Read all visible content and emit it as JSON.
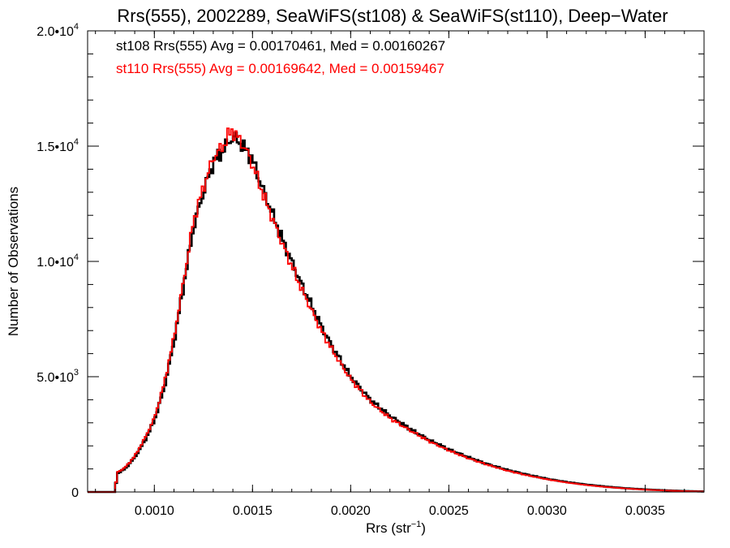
{
  "chart_data": {
    "type": "line",
    "title": "Rrs(555), 2002289, SeaWiFS(st108) & SeaWiFS(st110), Deep−Water",
    "xlabel_base": "Rrs (str",
    "xlabel_sup": "−1",
    "xlabel_end": ")",
    "ylabel": "Number of Observations",
    "xlim": [
      0.00066,
      0.0038
    ],
    "ylim": [
      0,
      20000
    ],
    "x_ticks": [
      {
        "value": 0.001,
        "label": "0.0010"
      },
      {
        "value": 0.0015,
        "label": "0.0015"
      },
      {
        "value": 0.002,
        "label": "0.0020"
      },
      {
        "value": 0.0025,
        "label": "0.0025"
      },
      {
        "value": 0.003,
        "label": "0.0030"
      },
      {
        "value": 0.0035,
        "label": "0.0035"
      }
    ],
    "y_ticks": [
      {
        "value": 0,
        "base": "0",
        "exp": ""
      },
      {
        "value": 5000,
        "base": "5.0•10",
        "exp": "3"
      },
      {
        "value": 10000,
        "base": "1.0•10",
        "exp": "4"
      },
      {
        "value": 15000,
        "base": "1.5•10",
        "exp": "4"
      },
      {
        "value": 20000,
        "base": "2.0•10",
        "exp": "4"
      }
    ],
    "annotations": [
      {
        "text": "st108 Rrs(555) Avg = 0.00170461, Med = 0.00160267",
        "color": "#000000"
      },
      {
        "text": "st110 Rrs(555) Avg = 0.00169642, Med = 0.00159467",
        "color": "#ff0000"
      }
    ],
    "series": [
      {
        "color": "#000000",
        "x": [
          0.00066,
          0.00075,
          0.0008,
          0.00081,
          0.00085,
          0.0009,
          0.00095,
          0.001,
          0.00105,
          0.0011,
          0.00115,
          0.0012,
          0.00125,
          0.0013,
          0.00135,
          0.00138,
          0.0014,
          0.00142,
          0.00145,
          0.00148,
          0.0015,
          0.00155,
          0.0016,
          0.00165,
          0.0017,
          0.00175,
          0.0018,
          0.00185,
          0.0019,
          0.00195,
          0.002,
          0.00205,
          0.0021,
          0.0022,
          0.0023,
          0.0024,
          0.0025,
          0.0026,
          0.0027,
          0.0028,
          0.0029,
          0.003,
          0.0031,
          0.0032,
          0.0033,
          0.0034,
          0.0035,
          0.0036,
          0.0037,
          0.0038
        ],
        "y": [
          0,
          0,
          0,
          800,
          1000,
          1500,
          2200,
          3100,
          4500,
          6500,
          9000,
          11500,
          13000,
          14300,
          14800,
          15200,
          15400,
          15300,
          15000,
          14700,
          14400,
          13200,
          12100,
          11000,
          10000,
          9000,
          8100,
          7200,
          6400,
          5700,
          5000,
          4500,
          4000,
          3300,
          2750,
          2250,
          1850,
          1500,
          1200,
          950,
          750,
          570,
          430,
          320,
          230,
          160,
          110,
          70,
          40,
          20
        ]
      },
      {
        "color": "#ff0000",
        "x": [
          0.00066,
          0.00075,
          0.0008,
          0.00081,
          0.00085,
          0.0009,
          0.00095,
          0.001,
          0.00105,
          0.0011,
          0.00115,
          0.0012,
          0.00125,
          0.0013,
          0.00135,
          0.00138,
          0.0014,
          0.00142,
          0.00145,
          0.00148,
          0.0015,
          0.00155,
          0.0016,
          0.00165,
          0.0017,
          0.00175,
          0.0018,
          0.00185,
          0.0019,
          0.00195,
          0.002,
          0.00205,
          0.0021,
          0.0022,
          0.0023,
          0.0024,
          0.0025,
          0.0026,
          0.0027,
          0.0028,
          0.0029,
          0.003,
          0.0031,
          0.0032,
          0.0033,
          0.0034,
          0.0035,
          0.0036,
          0.0037,
          0.0038
        ],
        "y": [
          0,
          0,
          0,
          850,
          1050,
          1550,
          2300,
          3200,
          4700,
          6700,
          9200,
          11800,
          13200,
          14500,
          15000,
          15500,
          15700,
          15400,
          15100,
          14600,
          14200,
          13000,
          11900,
          10800,
          9800,
          8800,
          7900,
          7000,
          6250,
          5550,
          4900,
          4400,
          3900,
          3200,
          2680,
          2200,
          1800,
          1460,
          1170,
          920,
          720,
          550,
          410,
          300,
          215,
          150,
          100,
          65,
          35,
          18
        ]
      }
    ]
  }
}
